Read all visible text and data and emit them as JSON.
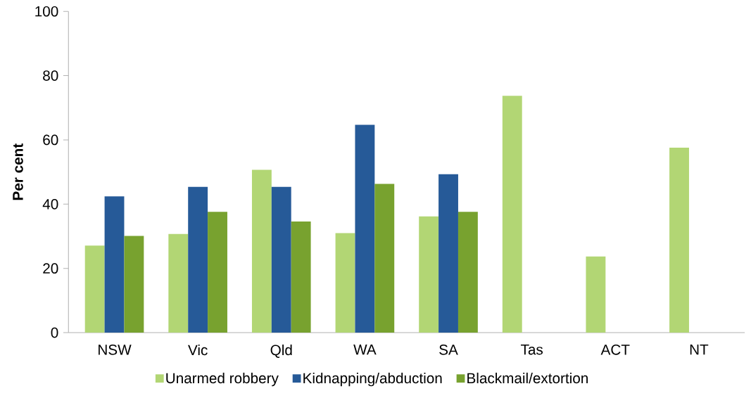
{
  "chart_data": {
    "type": "bar",
    "ylabel": "**Per cent**",
    "categories": [
      "NSW",
      "Vic",
      "Qld",
      "WA",
      "SA",
      "Tas",
      "ACT",
      "NT"
    ],
    "series": [
      {
        "name": "Unarmed robbery",
        "color": "#b2d674",
        "values": [
          27.1,
          30.7,
          50.7,
          31.0,
          36.2,
          73.7,
          23.7,
          57.6
        ]
      },
      {
        "name": "Kidnapping/abduction",
        "color": "#265a98",
        "values": [
          42.4,
          45.4,
          45.4,
          64.7,
          49.3,
          null,
          null,
          null
        ]
      },
      {
        "name": "Blackmail/extortion",
        "color": "#78a22f",
        "values": [
          30.1,
          37.6,
          34.6,
          46.3,
          37.6,
          null,
          null,
          null
        ]
      }
    ],
    "ylim": [
      0,
      100
    ],
    "yticks": [
      0,
      20,
      40,
      60,
      80,
      100
    ],
    "grid": false,
    "legend": "bottom"
  }
}
